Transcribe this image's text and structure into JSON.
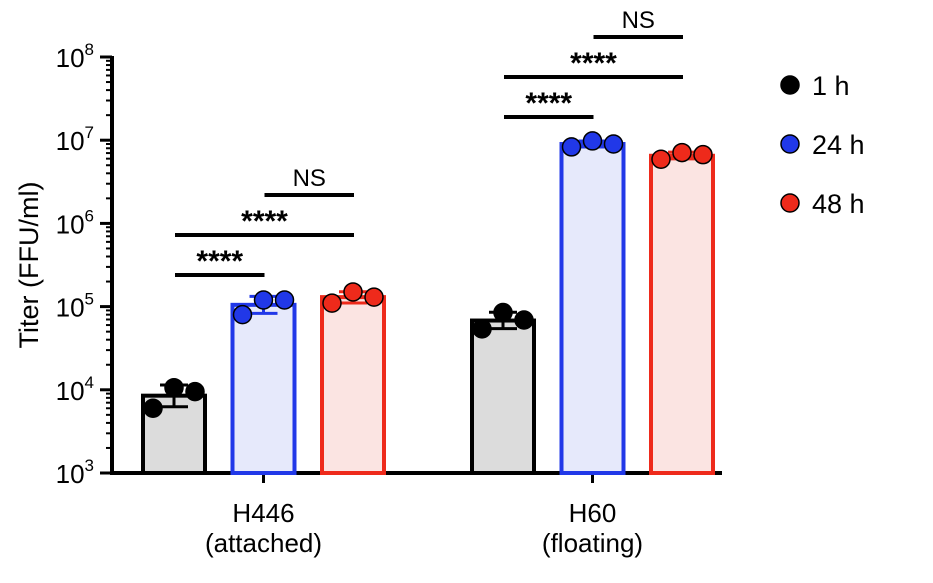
{
  "chart_data": {
    "type": "bar",
    "ylabel": "Titer (FFU/ml)",
    "yscale": "log",
    "ylim": [
      1000,
      100000000
    ],
    "yticks": [
      {
        "value": 1000,
        "base": "10",
        "exp": "3"
      },
      {
        "value": 10000,
        "base": "10",
        "exp": "4"
      },
      {
        "value": 100000,
        "base": "10",
        "exp": "5"
      },
      {
        "value": 1000000,
        "base": "10",
        "exp": "6"
      },
      {
        "value": 10000000,
        "base": "10",
        "exp": "7"
      },
      {
        "value": 100000000,
        "base": "10",
        "exp": "8"
      }
    ],
    "categories": [
      {
        "line1": "H446",
        "line2": "(attached)"
      },
      {
        "line1": "H60",
        "line2": "(floating)"
      }
    ],
    "series": [
      {
        "name": "1 h",
        "color": "#000000",
        "fill": "#dcdcdc",
        "values": [
          8500,
          68000
        ],
        "points": [
          [
            6000,
            10600,
            9500
          ],
          [
            54000,
            85000,
            69000
          ]
        ]
      },
      {
        "name": "24 h",
        "color": "#2138e8",
        "fill": "#e6e9fb",
        "values": [
          105000,
          9000000
        ],
        "points": [
          [
            80000,
            120000,
            120000
          ],
          [
            8300000,
            9800000,
            9000000
          ]
        ]
      },
      {
        "name": "48 h",
        "color": "#ee2a1b",
        "fill": "#fbe4e2",
        "values": [
          130000,
          6500000
        ],
        "points": [
          [
            110000,
            150000,
            130000
          ],
          [
            5900000,
            7100000,
            6700000
          ]
        ]
      }
    ],
    "significance": [
      {
        "category": 0,
        "from": 0,
        "to": 1,
        "label": "****"
      },
      {
        "category": 0,
        "from": 0,
        "to": 2,
        "label": "****"
      },
      {
        "category": 0,
        "from": 1,
        "to": 2,
        "label": "NS"
      },
      {
        "category": 1,
        "from": 0,
        "to": 1,
        "label": "****"
      },
      {
        "category": 1,
        "from": 0,
        "to": 2,
        "label": "****"
      },
      {
        "category": 1,
        "from": 1,
        "to": 2,
        "label": "NS"
      }
    ],
    "legend_position": "right",
    "grid": false
  }
}
